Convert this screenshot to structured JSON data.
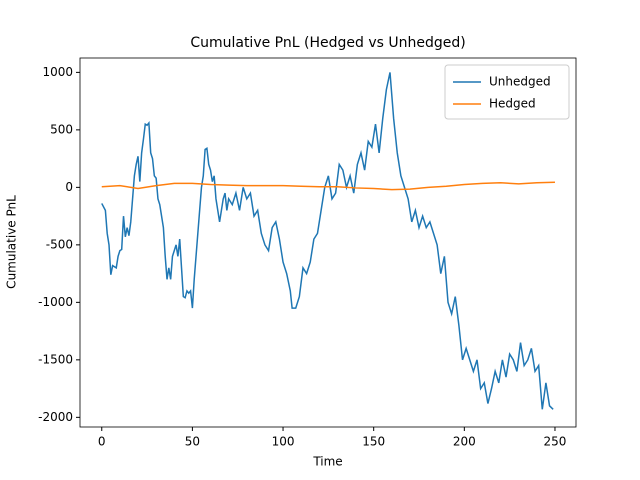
{
  "chart_data": {
    "type": "line",
    "title": "Cumulative PnL (Hedged vs Unhedged)",
    "x_label": "Time",
    "y_label": "Cumulative PnL",
    "xlim": [
      -12,
      261.6
    ],
    "ylim": [
      -2084,
      1125
    ],
    "xticks": [
      0,
      50,
      100,
      150,
      200,
      250
    ],
    "yticks": [
      -2000,
      -1500,
      -1000,
      -500,
      0,
      500,
      1000
    ],
    "legend": "upper right",
    "series": [
      {
        "name": "Unhedged",
        "color": "#1f77b4",
        "x": [
          0,
          2,
          3,
          4,
          5,
          6,
          8,
          9,
          10,
          11,
          12,
          13,
          14,
          15,
          16,
          17,
          18,
          19,
          20,
          21,
          22,
          23,
          24,
          25,
          26,
          27,
          28,
          29,
          30,
          31,
          32,
          33,
          34,
          35,
          36,
          37,
          38,
          39,
          40,
          41,
          42,
          43,
          44,
          45,
          46,
          47,
          48,
          49,
          50,
          51,
          52,
          53,
          54,
          55,
          56,
          57,
          58,
          59,
          60,
          61,
          62,
          63,
          64,
          65,
          66,
          67,
          68,
          69,
          70,
          72,
          74,
          76,
          78,
          80,
          82,
          84,
          86,
          88,
          90,
          92,
          94,
          96,
          98,
          100,
          102,
          104,
          105,
          107,
          109,
          111,
          113,
          115,
          117,
          119,
          121,
          123,
          125,
          127,
          129,
          131,
          133,
          135,
          137,
          139,
          141,
          143,
          145,
          147,
          149,
          151,
          153,
          155,
          157,
          159,
          161,
          163,
          165,
          167,
          169,
          171,
          173,
          175,
          177,
          179,
          181,
          183,
          185,
          187,
          189,
          191,
          193,
          195,
          197,
          199,
          201,
          203,
          205,
          207,
          209,
          211,
          213,
          215,
          217,
          219,
          221,
          223,
          225,
          227,
          229,
          231,
          233,
          235,
          237,
          239,
          241,
          243,
          245,
          247,
          249
        ],
        "values": [
          -140,
          -200,
          -400,
          -500,
          -760,
          -680,
          -700,
          -600,
          -550,
          -540,
          -250,
          -430,
          -350,
          -420,
          -300,
          -100,
          100,
          200,
          270,
          50,
          300,
          420,
          550,
          540,
          560,
          300,
          250,
          100,
          80,
          -100,
          -150,
          -250,
          -350,
          -600,
          -800,
          -700,
          -800,
          -600,
          -550,
          -500,
          -600,
          -450,
          -700,
          -950,
          -960,
          -900,
          -920,
          -900,
          -1050,
          -800,
          -600,
          -400,
          -200,
          0,
          100,
          330,
          340,
          200,
          150,
          50,
          100,
          -100,
          -200,
          -300,
          -200,
          -100,
          -50,
          -200,
          -100,
          -150,
          -50,
          -200,
          0,
          -100,
          -50,
          -250,
          -200,
          -400,
          -500,
          -550,
          -350,
          -300,
          -450,
          -650,
          -750,
          -900,
          -1050,
          -1050,
          -950,
          -700,
          -750,
          -650,
          -450,
          -400,
          -200,
          0,
          100,
          -100,
          -50,
          200,
          150,
          0,
          100,
          -50,
          200,
          300,
          150,
          400,
          350,
          550,
          300,
          600,
          850,
          1000,
          600,
          300,
          100,
          0,
          -100,
          -300,
          -200,
          -350,
          -250,
          -350,
          -300,
          -400,
          -500,
          -750,
          -600,
          -1000,
          -1100,
          -950,
          -1200,
          -1500,
          -1400,
          -1500,
          -1600,
          -1500,
          -1750,
          -1700,
          -1880,
          -1750,
          -1600,
          -1700,
          -1500,
          -1650,
          -1450,
          -1500,
          -1600,
          -1350,
          -1550,
          -1500,
          -1400,
          -1600,
          -1550,
          -1930,
          -1700,
          -1900,
          -1930
        ]
      },
      {
        "name": "Hedged",
        "color": "#ff7f0e",
        "x": [
          0,
          10,
          20,
          30,
          40,
          50,
          60,
          70,
          80,
          90,
          100,
          110,
          120,
          130,
          140,
          150,
          160,
          170,
          180,
          190,
          200,
          210,
          220,
          230,
          240,
          250
        ],
        "values": [
          5,
          15,
          -10,
          15,
          35,
          35,
          25,
          20,
          15,
          15,
          15,
          10,
          5,
          5,
          -5,
          -10,
          -20,
          -15,
          0,
          10,
          25,
          35,
          40,
          30,
          40,
          45
        ]
      }
    ]
  }
}
